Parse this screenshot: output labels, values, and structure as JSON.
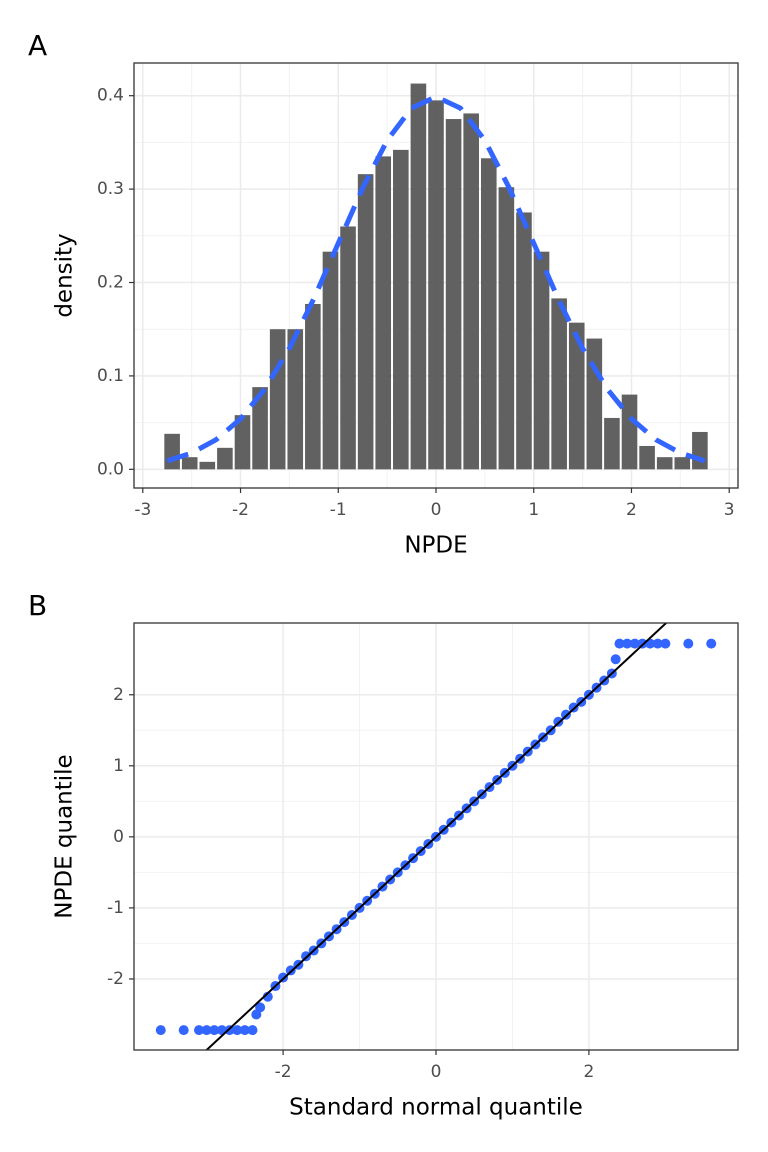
{
  "chart_data": [
    {
      "type": "histogram",
      "panel_label": "A",
      "xlabel": "NPDE",
      "ylabel": "density",
      "bins": [
        -2.79,
        -2.61,
        -2.43,
        -2.25,
        -2.07,
        -1.89,
        -1.71,
        -1.53,
        -1.35,
        -1.17,
        -0.99,
        -0.81,
        -0.63,
        -0.45,
        -0.27,
        -0.09,
        0.09,
        0.27,
        0.45,
        0.63,
        0.81,
        0.99,
        1.17,
        1.35,
        1.53,
        1.71,
        1.89,
        2.07,
        2.25,
        2.43,
        2.61,
        2.79
      ],
      "values": [
        0.038,
        0.013,
        0.008,
        0.023,
        0.058,
        0.088,
        0.15,
        0.15,
        0.177,
        0.233,
        0.26,
        0.316,
        0.335,
        0.342,
        0.413,
        0.395,
        0.375,
        0.381,
        0.333,
        0.302,
        0.275,
        0.233,
        0.183,
        0.157,
        0.14,
        0.055,
        0.08,
        0.025,
        0.013,
        0.013,
        0.04
      ],
      "color": "#595959",
      "density_curve": {
        "color": "#3366ff",
        "dashed": true,
        "x": [
          -2.75,
          -2.5,
          -2.25,
          -2,
          -1.75,
          -1.5,
          -1.25,
          -1,
          -0.75,
          -0.5,
          -0.25,
          0,
          0.25,
          0.5,
          0.75,
          1,
          1.25,
          1.5,
          1.75,
          2,
          2.25,
          2.5,
          2.75
        ],
        "y": [
          0.0091,
          0.0175,
          0.0317,
          0.054,
          0.0863,
          0.1295,
          0.1826,
          0.242,
          0.3011,
          0.3521,
          0.3867,
          0.3989,
          0.3867,
          0.3521,
          0.3011,
          0.242,
          0.1826,
          0.1295,
          0.0863,
          0.054,
          0.0317,
          0.0175,
          0.0091
        ]
      },
      "xlim": [
        -3.09,
        3.09
      ],
      "xticks": [
        -3,
        -2,
        -1,
        0,
        1,
        2,
        3
      ],
      "ylim": [
        -0.02,
        0.435
      ],
      "yticks": [
        {
          "value": 0,
          "label": "0.0"
        },
        0.1,
        0.2,
        0.3,
        0.4
      ],
      "grid": true
    },
    {
      "type": "scatter",
      "panel_label": "B",
      "xlabel": "Standard normal quantile",
      "ylabel": "NPDE quantile",
      "color": "#3366ff",
      "x": [
        -3.6,
        -3.3,
        -3.1,
        -3.0,
        -2.9,
        -2.8,
        -2.7,
        -2.6,
        -2.5,
        -2.4,
        -2.35,
        -2.3,
        -2.2,
        -2.1,
        -2.0,
        -1.9,
        -1.8,
        -1.7,
        -1.6,
        -1.5,
        -1.4,
        -1.3,
        -1.2,
        -1.1,
        -1.0,
        -0.9,
        -0.8,
        -0.7,
        -0.6,
        -0.5,
        -0.4,
        -0.3,
        -0.2,
        -0.1,
        0,
        0.1,
        0.2,
        0.3,
        0.4,
        0.5,
        0.6,
        0.7,
        0.8,
        0.9,
        1.0,
        1.1,
        1.2,
        1.3,
        1.4,
        1.5,
        1.6,
        1.7,
        1.8,
        1.9,
        2.0,
        2.1,
        2.2,
        2.3,
        2.35,
        2.4,
        2.5,
        2.6,
        2.7,
        2.8,
        2.9,
        3.0,
        3.3,
        3.6
      ],
      "y": [
        -2.72,
        -2.72,
        -2.72,
        -2.72,
        -2.72,
        -2.72,
        -2.72,
        -2.72,
        -2.72,
        -2.72,
        -2.5,
        -2.4,
        -2.25,
        -2.1,
        -1.98,
        -1.88,
        -1.8,
        -1.68,
        -1.6,
        -1.5,
        -1.4,
        -1.3,
        -1.2,
        -1.1,
        -1.0,
        -0.9,
        -0.8,
        -0.7,
        -0.6,
        -0.5,
        -0.4,
        -0.3,
        -0.2,
        -0.1,
        0,
        0.1,
        0.2,
        0.3,
        0.4,
        0.5,
        0.6,
        0.7,
        0.8,
        0.9,
        1.0,
        1.1,
        1.2,
        1.3,
        1.4,
        1.5,
        1.62,
        1.72,
        1.82,
        1.9,
        2.0,
        2.1,
        2.2,
        2.3,
        2.5,
        2.72,
        2.72,
        2.72,
        2.72,
        2.72,
        2.72,
        2.72,
        2.72,
        2.72
      ],
      "reference_line": {
        "slope": 1,
        "intercept": 0,
        "color": "#000000"
      },
      "xlim": [
        -3.95,
        3.95
      ],
      "xticks": [
        -2,
        0,
        2
      ],
      "ylim": [
        -3.0,
        3.01
      ],
      "yticks": [
        -2,
        -1,
        0,
        1,
        2
      ],
      "grid": true
    }
  ]
}
